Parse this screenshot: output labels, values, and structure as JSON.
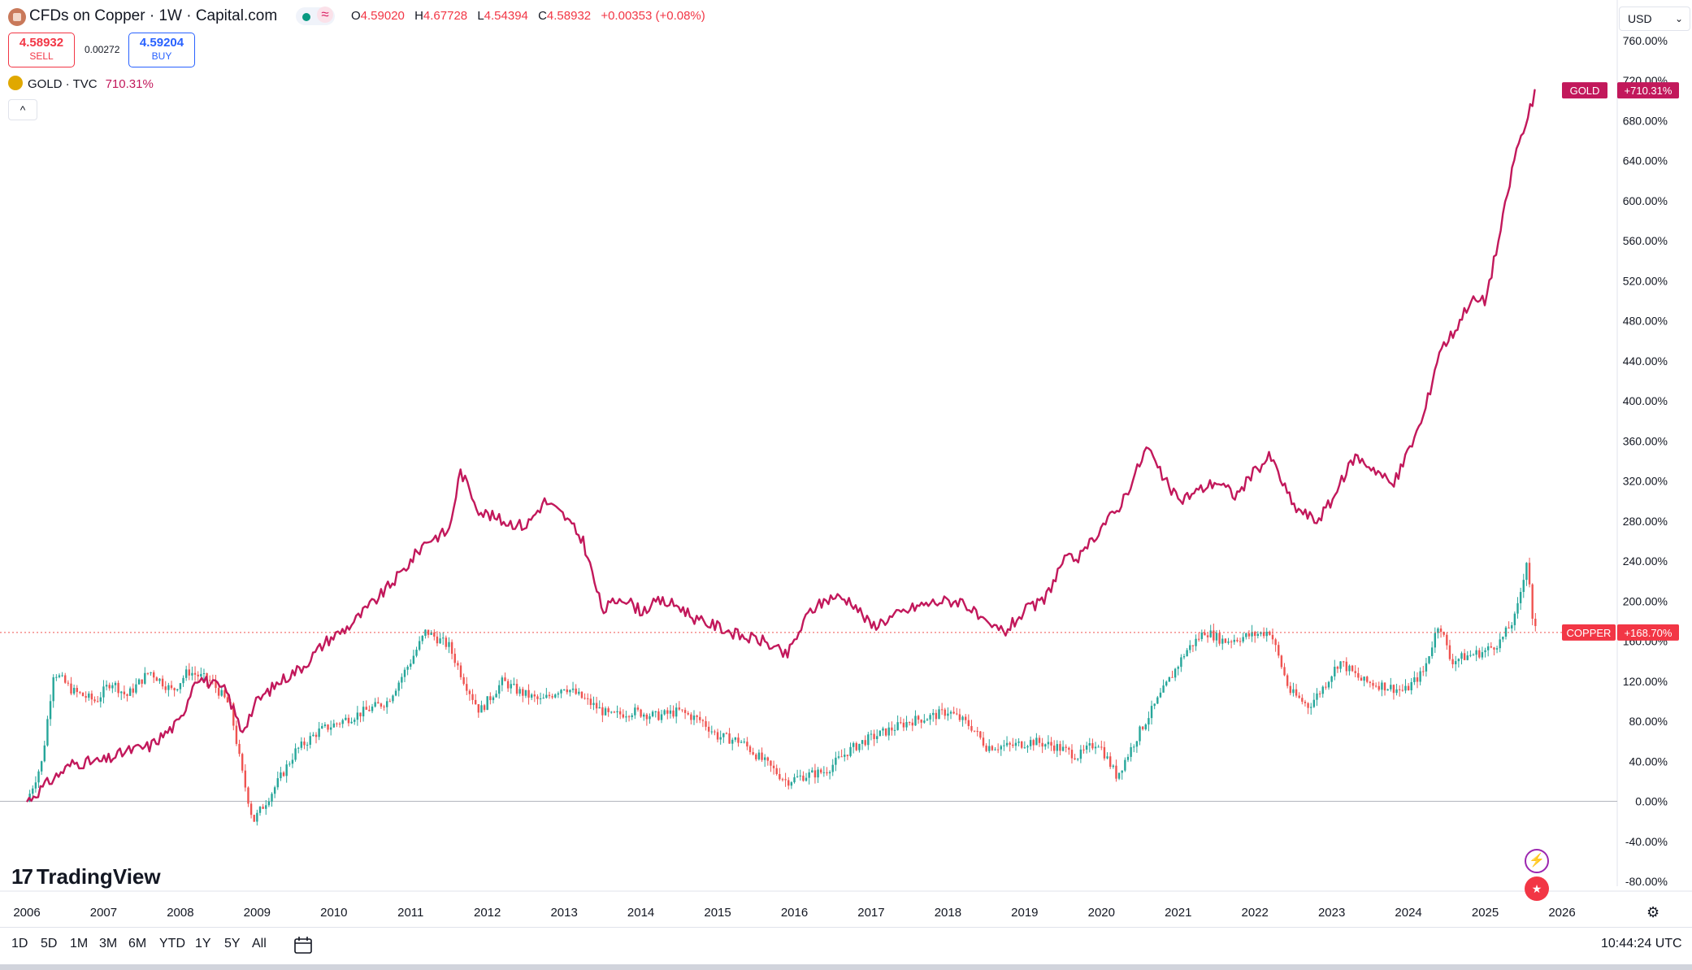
{
  "header": {
    "title": "CFDs on Copper · 1W · Capital.com",
    "approx_symbol": "≈",
    "ohlc": [
      {
        "key": "O",
        "value": "4.59020"
      },
      {
        "key": "H",
        "value": "4.67728"
      },
      {
        "key": "L",
        "value": "4.54394"
      },
      {
        "key": "C",
        "value": "4.58932"
      },
      {
        "key": "",
        "value": "+0.00353 (+0.08%)"
      }
    ],
    "sell": {
      "price": "4.58932",
      "label": "SELL"
    },
    "buy": {
      "price": "4.59204",
      "label": "BUY"
    },
    "spread": "0.00272",
    "gold": {
      "name": "GOLD · TVC",
      "value": "710.31%"
    },
    "collapse": "^"
  },
  "currency": {
    "label": "USD",
    "chevron": "⌄"
  },
  "logo": {
    "mark": "17",
    "name": "TradingView"
  },
  "ranges": [
    "1D",
    "5D",
    "1M",
    "3M",
    "6M",
    "YTD",
    "1Y",
    "5Y",
    "All"
  ],
  "clock": "10:44:24 UTC",
  "icons": {
    "calendar": "calendar-range-icon",
    "gear": "gear-icon",
    "flash": "flash-icon",
    "flag": "us-flag-icon"
  },
  "colors": {
    "gold": "#c2185b",
    "up": "#26a69a",
    "down": "#ef5350",
    "axis": "#131722"
  },
  "chart_data": {
    "type": "line",
    "title": "CFDs on Copper · 1W · Capital.com",
    "ylabel": "",
    "xlabel": "",
    "ylim": [
      -80,
      760
    ],
    "x_ticks": [
      "2006",
      "2007",
      "2008",
      "2009",
      "2010",
      "2011",
      "2012",
      "2013",
      "2014",
      "2015",
      "2016",
      "2017",
      "2018",
      "2019",
      "2020",
      "2021",
      "2022",
      "2023",
      "2024",
      "2025",
      "2026"
    ],
    "y_ticks": [
      "760.00%",
      "720.00%",
      "680.00%",
      "640.00%",
      "600.00%",
      "560.00%",
      "520.00%",
      "480.00%",
      "440.00%",
      "400.00%",
      "360.00%",
      "320.00%",
      "280.00%",
      "240.00%",
      "200.00%",
      "160.00%",
      "120.00%",
      "80.00%",
      "40.00%",
      "0.00%",
      "-40.00%",
      "-80.00%"
    ],
    "grid": false,
    "legend": "top-left",
    "series": [
      {
        "name": "GOLD",
        "label": "GOLD",
        "last_label": "+710.31%",
        "last": 710.31,
        "x": [
          2006.0,
          2006.3,
          2006.6,
          2007.0,
          2007.3,
          2007.6,
          2008.0,
          2008.2,
          2008.6,
          2008.8,
          2009.0,
          2009.3,
          2009.6,
          2009.9,
          2010.2,
          2010.6,
          2010.9,
          2011.2,
          2011.5,
          2011.65,
          2011.9,
          2012.2,
          2012.5,
          2012.75,
          2013.0,
          2013.25,
          2013.5,
          2013.75,
          2014.0,
          2014.25,
          2014.5,
          2014.75,
          2015.0,
          2015.3,
          2015.6,
          2015.9,
          2016.2,
          2016.5,
          2016.75,
          2017.0,
          2017.3,
          2017.6,
          2017.9,
          2018.2,
          2018.5,
          2018.75,
          2019.0,
          2019.25,
          2019.5,
          2019.75,
          2020.0,
          2020.2,
          2020.4,
          2020.6,
          2020.75,
          2021.0,
          2021.25,
          2021.5,
          2021.75,
          2022.0,
          2022.2,
          2022.5,
          2022.8,
          2023.0,
          2023.3,
          2023.6,
          2023.8,
          2024.0,
          2024.2,
          2024.4,
          2024.6,
          2024.8,
          2025.0,
          2025.2,
          2025.4,
          2025.55,
          2025.65
        ],
        "y": [
          0,
          20,
          38,
          40,
          50,
          55,
          80,
          125,
          110,
          70,
          100,
          120,
          135,
          160,
          175,
          205,
          230,
          260,
          270,
          330,
          290,
          280,
          275,
          300,
          285,
          260,
          190,
          205,
          190,
          200,
          195,
          180,
          175,
          165,
          160,
          145,
          190,
          205,
          200,
          175,
          185,
          195,
          200,
          200,
          175,
          170,
          190,
          200,
          240,
          245,
          275,
          290,
          320,
          355,
          330,
          300,
          310,
          320,
          305,
          330,
          345,
          295,
          280,
          300,
          345,
          330,
          315,
          350,
          385,
          450,
          470,
          500,
          500,
          570,
          650,
          680,
          710.31
        ]
      },
      {
        "name": "COPPER",
        "label": "COPPER",
        "last_label": "+168.70%",
        "last": 168.7,
        "x": [
          2006.0,
          2006.2,
          2006.35,
          2006.6,
          2006.9,
          2007.1,
          2007.3,
          2007.6,
          2007.9,
          2008.1,
          2008.4,
          2008.65,
          2008.8,
          2008.95,
          2009.2,
          2009.5,
          2009.8,
          2010.1,
          2010.4,
          2010.7,
          2011.0,
          2011.2,
          2011.5,
          2011.7,
          2011.9,
          2012.2,
          2012.4,
          2012.7,
          2013.0,
          2013.3,
          2013.6,
          2013.9,
          2014.2,
          2014.5,
          2014.8,
          2015.0,
          2015.3,
          2015.6,
          2015.9,
          2016.1,
          2016.4,
          2016.7,
          2016.9,
          2017.2,
          2017.5,
          2017.8,
          2018.0,
          2018.3,
          2018.5,
          2018.8,
          2019.1,
          2019.4,
          2019.7,
          2019.95,
          2020.2,
          2020.5,
          2020.8,
          2021.1,
          2021.35,
          2021.6,
          2021.9,
          2022.2,
          2022.45,
          2022.7,
          2022.9,
          2023.1,
          2023.4,
          2023.7,
          2023.95,
          2024.2,
          2024.4,
          2024.55,
          2024.75,
          2025.0,
          2025.2,
          2025.4,
          2025.55,
          2025.62,
          2025.67
        ],
        "y": [
          0,
          40,
          130,
          110,
          100,
          120,
          105,
          130,
          110,
          130,
          120,
          95,
          30,
          -20,
          10,
          50,
          70,
          80,
          90,
          100,
          140,
          170,
          155,
          120,
          90,
          120,
          110,
          100,
          115,
          100,
          85,
          90,
          85,
          90,
          80,
          65,
          60,
          40,
          20,
          25,
          30,
          50,
          60,
          70,
          80,
          85,
          90,
          75,
          55,
          55,
          60,
          55,
          45,
          60,
          25,
          70,
          110,
          150,
          170,
          160,
          165,
          170,
          110,
          95,
          115,
          140,
          120,
          115,
          110,
          130,
          180,
          140,
          145,
          150,
          160,
          185,
          245,
          175,
          168.7
        ]
      }
    ]
  }
}
